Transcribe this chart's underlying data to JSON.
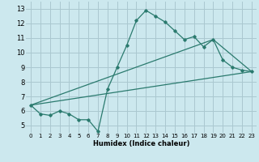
{
  "title": "",
  "xlabel": "Humidex (Indice chaleur)",
  "ylabel": "",
  "bg_color": "#cce8ee",
  "grid_color": "#aac8d0",
  "line_color": "#2a7a6e",
  "xlim": [
    -0.5,
    23.5
  ],
  "ylim": [
    4.5,
    13.5
  ],
  "xticks": [
    0,
    1,
    2,
    3,
    4,
    5,
    6,
    7,
    8,
    9,
    10,
    11,
    12,
    13,
    14,
    15,
    16,
    17,
    18,
    19,
    20,
    21,
    22,
    23
  ],
  "yticks": [
    5,
    6,
    7,
    8,
    9,
    10,
    11,
    12,
    13
  ],
  "main_x": [
    0,
    1,
    2,
    3,
    4,
    5,
    6,
    7,
    8,
    9,
    10,
    11,
    12,
    13,
    14,
    15,
    16,
    17,
    18,
    19,
    20,
    21,
    22,
    23
  ],
  "main_y": [
    6.4,
    5.8,
    5.7,
    6.0,
    5.8,
    5.4,
    5.4,
    4.6,
    7.5,
    9.0,
    10.5,
    12.2,
    12.9,
    12.5,
    12.1,
    11.5,
    10.9,
    11.1,
    10.4,
    10.9,
    9.5,
    9.0,
    8.8,
    8.7
  ],
  "line2_x": [
    0,
    23
  ],
  "line2_y": [
    6.4,
    8.7
  ],
  "line3_x": [
    0,
    19,
    23
  ],
  "line3_y": [
    6.4,
    10.9,
    8.7
  ],
  "xlabel_fontsize": 6.0,
  "tick_fontsize_x": 5.0,
  "tick_fontsize_y": 6.0
}
